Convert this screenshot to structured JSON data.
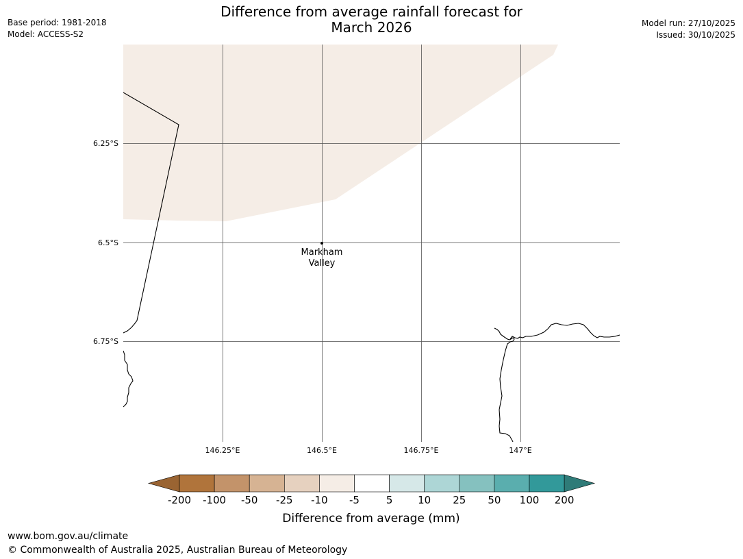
{
  "header": {
    "title_line1": "Difference from average rainfall forecast for",
    "title_line2": "March 2026",
    "base_period": "Base period: 1981-2018",
    "model": "Model: ACCESS-S2",
    "model_run": "Model run: 27/10/2025",
    "issued": "Issued: 30/10/2025"
  },
  "map": {
    "lat_labels": [
      "6.25°S",
      "6.5°S",
      "6.75°S"
    ],
    "lon_labels": [
      "146.25°E",
      "146.5°E",
      "146.75°E",
      "147°E"
    ],
    "place": {
      "name_line1": "Markham",
      "name_line2": "Valley"
    },
    "shaded_category": "-10 to -5",
    "shaded_color": "#f5ede6",
    "coastline_color": "#000000",
    "grid_color": "#555555"
  },
  "legend": {
    "title": "Difference from average (mm)",
    "ticks": [
      "-200",
      "-100",
      "-50",
      "-25",
      "-10",
      "-5",
      "5",
      "10",
      "25",
      "50",
      "100",
      "200"
    ],
    "colors": [
      "#9a6432",
      "#b0743b",
      "#c3936a",
      "#d6b393",
      "#e6d1bf",
      "#f5ede6",
      "#ffffff",
      "#d6e8e8",
      "#add6d6",
      "#85c1bf",
      "#5aaeae",
      "#32999a",
      "#2f7b78"
    ]
  },
  "footer": {
    "url": "www.bom.gov.au/climate",
    "copyright": "© Commonwealth of Australia 2025, Australian Bureau of Meteorology"
  }
}
